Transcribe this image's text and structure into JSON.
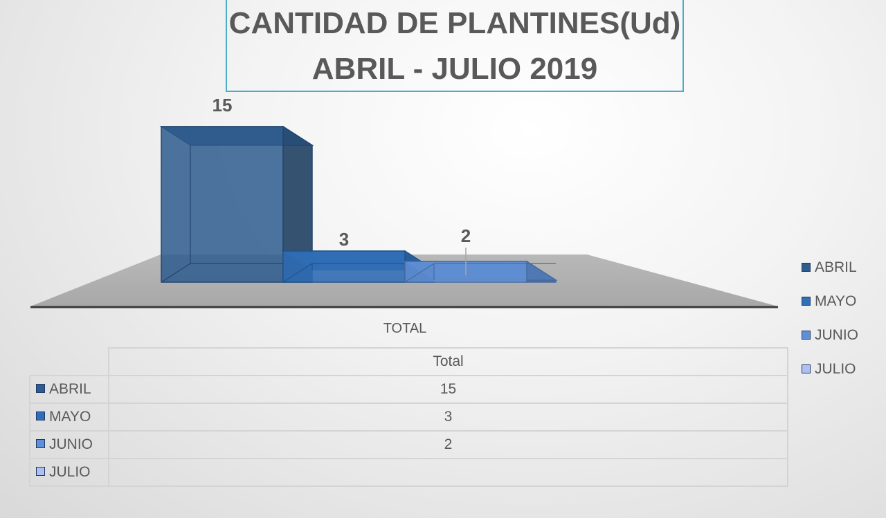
{
  "chart_data": {
    "type": "bar",
    "title": "CANTIDAD DE PLANTINES(Ud)",
    "subtitle": "ABRIL - JULIO  2019",
    "categories": [
      "TOTAL"
    ],
    "series": [
      {
        "name": "ABRIL",
        "values": [
          15
        ],
        "color": "#2e5c8e"
      },
      {
        "name": "MAYO",
        "values": [
          3
        ],
        "color": "#2f6fb9"
      },
      {
        "name": "JUNIO",
        "values": [
          2
        ],
        "color": "#5f8fd6"
      },
      {
        "name": "JULIO",
        "values": [
          null
        ],
        "color": "#aebff0"
      }
    ],
    "data_labels": [
      "15",
      "3",
      "2",
      ""
    ],
    "legend_position": "right",
    "data_table": {
      "header": "Total",
      "rows": [
        {
          "label": "ABRIL",
          "value": "15"
        },
        {
          "label": "MAYO",
          "value": "3"
        },
        {
          "label": "JUNIO",
          "value": "2"
        },
        {
          "label": "JULIO",
          "value": ""
        }
      ]
    }
  }
}
